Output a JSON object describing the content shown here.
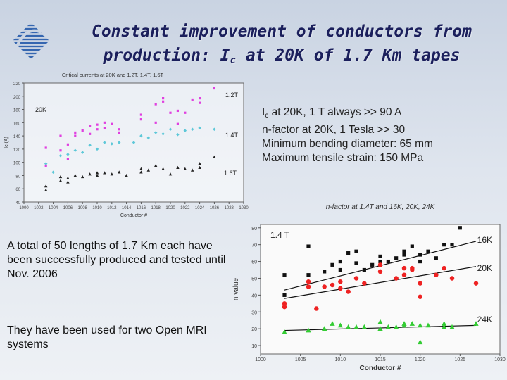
{
  "slide": {
    "title_line1": "Constant improvement of conductors from",
    "title_line2_pre": "production: I",
    "title_line2_sub": "c",
    "title_line2_post": " at 20K of 1.7 Km tapes",
    "logo_icon": "striped-globe-logo",
    "bullets": [
      {
        "pre": "I",
        "sub": "c",
        "post": " at 20K, 1 T always >> 90 A"
      },
      {
        "pre": "n-factor at 20K, 1 Tesla >> 30",
        "sub": "",
        "post": ""
      },
      {
        "pre": "Minimum bending diameter: 65 mm",
        "sub": "",
        "post": ""
      },
      {
        "pre": "Maximum tensile strain: 150 MPa",
        "sub": "",
        "post": ""
      }
    ],
    "paragraph1": "A total of 50 lengths of 1.7 Km each have been successfully produced and tested until Nov. 2006",
    "paragraph2": "They have been used for two Open MRI systems"
  },
  "chart_data": [
    {
      "type": "scatter",
      "title": "Critical currents at 20K and 1.2T, 1.4T, 1.6T",
      "xlabel": "Conductor #",
      "ylabel": "Ic (A)",
      "xlim": [
        1000,
        1030
      ],
      "ylim": [
        40,
        220
      ],
      "xticks": [
        "1000",
        "1002",
        "1004",
        "1006",
        "1008",
        "1010",
        "1012",
        "1014",
        "1016",
        "1018",
        "1020",
        "1022",
        "1024",
        "1026",
        "1028",
        "1030"
      ],
      "yticks": [
        "40",
        "60",
        "80",
        "100",
        "120",
        "140",
        "160",
        "180",
        "200",
        "220"
      ],
      "annotations": [
        "20K"
      ],
      "series": [
        {
          "name": "1.2T",
          "color": "#e040e0",
          "points": [
            [
              1003,
              122
            ],
            [
              1003,
              95
            ],
            [
              1005,
              140
            ],
            [
              1005,
              118
            ],
            [
              1006,
              127
            ],
            [
              1006,
              105
            ],
            [
              1007,
              145
            ],
            [
              1007,
              140
            ],
            [
              1008,
              148
            ],
            [
              1009,
              155
            ],
            [
              1009,
              143
            ],
            [
              1010,
              157
            ],
            [
              1010,
              150
            ],
            [
              1011,
              160
            ],
            [
              1011,
              152
            ],
            [
              1012,
              158
            ],
            [
              1013,
              150
            ],
            [
              1013,
              145
            ],
            [
              1016,
              172
            ],
            [
              1016,
              165
            ],
            [
              1018,
              188
            ],
            [
              1018,
              160
            ],
            [
              1019,
              192
            ],
            [
              1019,
              197
            ],
            [
              1020,
              175
            ],
            [
              1021,
              178
            ],
            [
              1021,
              158
            ],
            [
              1022,
              175
            ],
            [
              1023,
              195
            ],
            [
              1024,
              197
            ],
            [
              1024,
              190
            ],
            [
              1026,
              212
            ]
          ]
        },
        {
          "name": "1.4T",
          "color": "#5dc8d8",
          "points": [
            [
              1003,
              98
            ],
            [
              1004,
              85
            ],
            [
              1005,
              110
            ],
            [
              1006,
              112
            ],
            [
              1007,
              118
            ],
            [
              1008,
              115
            ],
            [
              1009,
              126
            ],
            [
              1010,
              120
            ],
            [
              1011,
              130
            ],
            [
              1012,
              128
            ],
            [
              1013,
              130
            ],
            [
              1015,
              130
            ],
            [
              1016,
              140
            ],
            [
              1017,
              137
            ],
            [
              1018,
              145
            ],
            [
              1019,
              143
            ],
            [
              1020,
              150
            ],
            [
              1021,
              142
            ],
            [
              1022,
              148
            ],
            [
              1023,
              150
            ],
            [
              1024,
              152
            ],
            [
              1026,
              150
            ]
          ]
        },
        {
          "name": "1.6T",
          "color": "#222222",
          "points": [
            [
              1003,
              64
            ],
            [
              1003,
              58
            ],
            [
              1005,
              78
            ],
            [
              1005,
              72
            ],
            [
              1006,
              76
            ],
            [
              1006,
              70
            ],
            [
              1007,
              80
            ],
            [
              1008,
              78
            ],
            [
              1009,
              82
            ],
            [
              1010,
              84
            ],
            [
              1010,
              80
            ],
            [
              1011,
              84
            ],
            [
              1012,
              82
            ],
            [
              1013,
              85
            ],
            [
              1014,
              80
            ],
            [
              1016,
              90
            ],
            [
              1016,
              85
            ],
            [
              1017,
              88
            ],
            [
              1018,
              94
            ],
            [
              1018,
              95
            ],
            [
              1019,
              90
            ],
            [
              1020,
              82
            ],
            [
              1021,
              92
            ],
            [
              1022,
              90
            ],
            [
              1023,
              88
            ],
            [
              1024,
              92
            ],
            [
              1024,
              98
            ],
            [
              1026,
              108
            ]
          ]
        }
      ]
    },
    {
      "type": "scatter",
      "title": "n-factor at 1.4T and 16K, 20K, 24K",
      "xlabel": "Conductor #",
      "ylabel": "n value",
      "xlim": [
        1000,
        1030
      ],
      "ylim": [
        5,
        82
      ],
      "xticks": [
        "1000",
        "1005",
        "1010",
        "1015",
        "1020",
        "1025",
        "1030"
      ],
      "yticks": [
        "10",
        "20",
        "30",
        "40",
        "50",
        "60",
        "70",
        "80"
      ],
      "annotations": [
        "1.4 T"
      ],
      "series": [
        {
          "name": "16K",
          "color": "#111111",
          "trend": [
            [
              1003,
              43
            ],
            [
              1027,
              72
            ]
          ],
          "points": [
            [
              1003,
              52
            ],
            [
              1003,
              40
            ],
            [
              1006,
              69
            ],
            [
              1006,
              52
            ],
            [
              1008,
              54
            ],
            [
              1009,
              58
            ],
            [
              1010,
              60
            ],
            [
              1010,
              55
            ],
            [
              1011,
              65
            ],
            [
              1012,
              66
            ],
            [
              1012,
              59
            ],
            [
              1013,
              55
            ],
            [
              1014,
              58
            ],
            [
              1015,
              63
            ],
            [
              1015,
              60
            ],
            [
              1016,
              60
            ],
            [
              1017,
              62
            ],
            [
              1018,
              66
            ],
            [
              1018,
              64
            ],
            [
              1019,
              69
            ],
            [
              1020,
              60
            ],
            [
              1020,
              64
            ],
            [
              1021,
              66
            ],
            [
              1022,
              62
            ],
            [
              1023,
              70
            ],
            [
              1024,
              70
            ],
            [
              1025,
              80
            ]
          ]
        },
        {
          "name": "20K",
          "color": "#ee2222",
          "trend": [
            [
              1003,
              38
            ],
            [
              1027,
              57
            ]
          ],
          "points": [
            [
              1003,
              35
            ],
            [
              1003,
              33
            ],
            [
              1006,
              48
            ],
            [
              1006,
              45
            ],
            [
              1007,
              32
            ],
            [
              1008,
              45
            ],
            [
              1009,
              46
            ],
            [
              1010,
              48
            ],
            [
              1010,
              44
            ],
            [
              1011,
              42
            ],
            [
              1012,
              50
            ],
            [
              1013,
              47
            ],
            [
              1015,
              58
            ],
            [
              1015,
              54
            ],
            [
              1017,
              50
            ],
            [
              1018,
              56
            ],
            [
              1018,
              52
            ],
            [
              1019,
              55
            ],
            [
              1019,
              56
            ],
            [
              1020,
              47
            ],
            [
              1020,
              39
            ],
            [
              1022,
              52
            ],
            [
              1023,
              56
            ],
            [
              1024,
              50
            ],
            [
              1027,
              47
            ]
          ]
        },
        {
          "name": "24K",
          "color": "#33cc33",
          "trend": [
            [
              1003,
              19
            ],
            [
              1027,
              22
            ]
          ],
          "points": [
            [
              1003,
              18
            ],
            [
              1006,
              19
            ],
            [
              1008,
              20
            ],
            [
              1009,
              23
            ],
            [
              1010,
              22
            ],
            [
              1011,
              21
            ],
            [
              1012,
              21
            ],
            [
              1013,
              21
            ],
            [
              1015,
              20
            ],
            [
              1015,
              24
            ],
            [
              1016,
              21
            ],
            [
              1017,
              21
            ],
            [
              1018,
              23
            ],
            [
              1018,
              22
            ],
            [
              1019,
              23
            ],
            [
              1020,
              12
            ],
            [
              1020,
              22
            ],
            [
              1021,
              22
            ],
            [
              1023,
              23
            ],
            [
              1023,
              21
            ],
            [
              1024,
              21
            ],
            [
              1027,
              23
            ]
          ]
        }
      ]
    }
  ]
}
